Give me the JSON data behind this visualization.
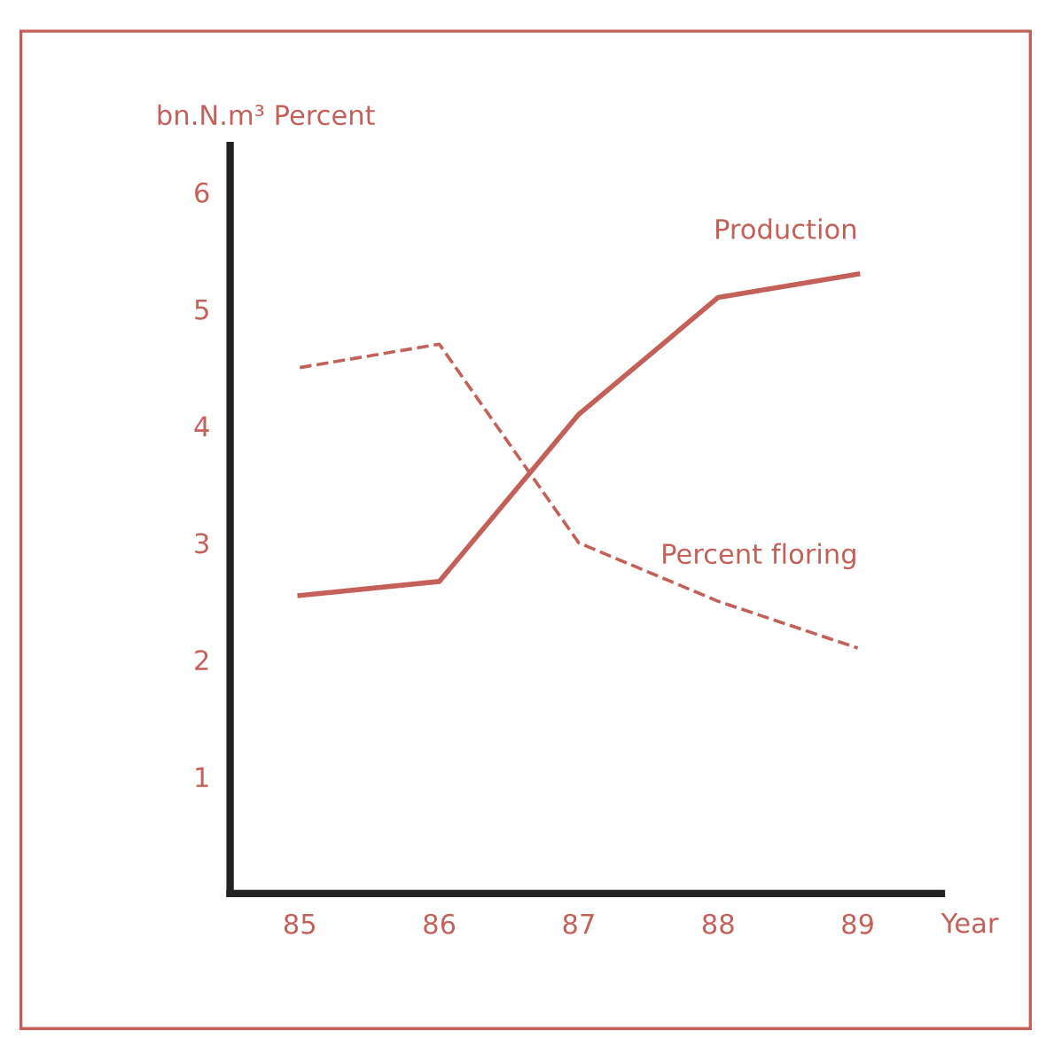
{
  "chart_data": {
    "type": "line",
    "ylabel": "bn.N.m³ Percent",
    "xlabel": "Year",
    "x": [
      85,
      86,
      87,
      88,
      89
    ],
    "series": [
      {
        "name": "Production",
        "color": "#c4605a",
        "values": [
          2.55,
          2.67,
          4.1,
          5.1,
          5.3
        ],
        "line_style": "solid"
      },
      {
        "name": "Percent floring",
        "color": "#c4605a",
        "values": [
          4.5,
          4.7,
          3.0,
          2.5,
          2.1
        ],
        "line_style": "dashed"
      }
    ],
    "xlim": [
      84.5,
      89.6
    ],
    "ylim": [
      0,
      6.4
    ],
    "xticks": [
      85,
      86,
      87,
      88,
      89
    ],
    "yticks": [
      1,
      2,
      3,
      4,
      5,
      6
    ],
    "grid": false,
    "legend": false,
    "marker": "none"
  }
}
